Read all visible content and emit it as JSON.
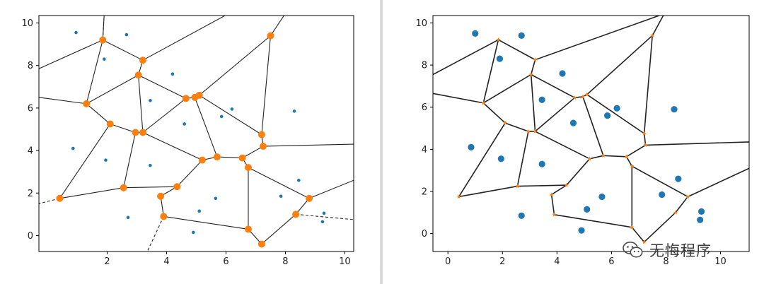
{
  "colors": {
    "point": "#1f77b4",
    "vertex": "#ff7f0e",
    "edge": "#222222",
    "wechat": "#4a4a4a"
  },
  "chart_data": [
    {
      "type": "scatter",
      "title": "",
      "xlabel": "",
      "ylabel": "",
      "xlim": [
        -0.3,
        10.3
      ],
      "ylim": [
        -0.75,
        10.35
      ],
      "xticks": [
        "2",
        "4",
        "6",
        "8",
        "10"
      ],
      "yticks": [
        "0",
        "2",
        "4",
        "6",
        "8",
        "10"
      ],
      "grid": false,
      "points": [
        [
          0.95,
          9.55
        ],
        [
          2.65,
          9.45
        ],
        [
          1.9,
          8.3
        ],
        [
          4.2,
          7.6
        ],
        [
          3.45,
          6.35
        ],
        [
          6.2,
          5.95
        ],
        [
          8.3,
          5.85
        ],
        [
          5.85,
          5.6
        ],
        [
          4.6,
          5.25
        ],
        [
          0.85,
          4.1
        ],
        [
          1.95,
          3.55
        ],
        [
          3.45,
          3.3
        ],
        [
          8.45,
          2.6
        ],
        [
          5.65,
          1.75
        ],
        [
          7.85,
          1.85
        ],
        [
          2.7,
          0.85
        ],
        [
          5.1,
          1.15
        ],
        [
          9.3,
          1.05
        ],
        [
          9.25,
          0.65
        ],
        [
          4.9,
          0.15
        ]
      ],
      "vertices": [
        [
          1.85,
          9.2
        ],
        [
          3.2,
          8.25
        ],
        [
          3.05,
          7.55
        ],
        [
          1.3,
          6.2
        ],
        [
          4.65,
          6.45
        ],
        [
          4.95,
          6.5
        ],
        [
          5.1,
          6.6
        ],
        [
          2.1,
          5.25
        ],
        [
          2.95,
          4.85
        ],
        [
          3.2,
          4.85
        ],
        [
          7.2,
          4.75
        ],
        [
          7.25,
          4.2
        ],
        [
          5.2,
          3.55
        ],
        [
          5.7,
          3.7
        ],
        [
          6.55,
          3.65
        ],
        [
          6.75,
          3.2
        ],
        [
          2.55,
          2.25
        ],
        [
          4.35,
          2.3
        ],
        [
          3.8,
          1.85
        ],
        [
          0.4,
          1.75
        ],
        [
          8.8,
          1.75
        ],
        [
          3.9,
          0.9
        ],
        [
          8.35,
          1.0
        ],
        [
          6.75,
          0.3
        ],
        [
          7.2,
          -0.4
        ],
        [
          7.5,
          9.4
        ]
      ],
      "edges": [
        [
          0,
          1
        ],
        [
          1,
          2
        ],
        [
          2,
          3
        ],
        [
          2,
          4
        ],
        [
          4,
          5
        ],
        [
          5,
          6
        ],
        [
          6,
          25
        ],
        [
          3,
          7
        ],
        [
          7,
          8
        ],
        [
          8,
          9
        ],
        [
          9,
          2
        ],
        [
          9,
          4
        ],
        [
          9,
          12
        ],
        [
          12,
          13
        ],
        [
          13,
          14
        ],
        [
          14,
          15
        ],
        [
          15,
          23
        ],
        [
          6,
          10
        ],
        [
          10,
          25
        ],
        [
          10,
          11
        ],
        [
          11,
          14
        ],
        [
          5,
          13
        ],
        [
          8,
          16
        ],
        [
          7,
          19
        ],
        [
          19,
          16
        ],
        [
          16,
          17
        ],
        [
          17,
          12
        ],
        [
          17,
          18
        ],
        [
          18,
          21
        ],
        [
          21,
          23
        ],
        [
          23,
          24
        ],
        [
          15,
          20
        ],
        [
          20,
          22
        ],
        [
          22,
          24
        ],
        [
          0,
          3
        ]
      ],
      "outer_edges": [
        [
          0,
          [
            1.9,
            10.45
          ]
        ],
        [
          1,
          [
            6.1,
            10.45
          ]
        ],
        [
          3,
          [
            -0.3,
            6.5
          ]
        ],
        [
          0,
          [
            -0.3,
            7.85
          ]
        ],
        [
          25,
          [
            8.0,
            10.45
          ]
        ],
        [
          11,
          [
            10.3,
            4.3
          ]
        ],
        [
          20,
          [
            10.3,
            2.6
          ]
        ]
      ],
      "outer_dashed": [
        [
          0,
          [
            1.9,
            10.45
          ]
        ],
        [
          19,
          [
            -0.3,
            1.5
          ]
        ],
        [
          21,
          [
            3.35,
            -0.75
          ]
        ],
        [
          22,
          [
            10.3,
            0.75
          ]
        ]
      ]
    },
    {
      "type": "scatter",
      "title": "",
      "xlabel": "",
      "ylabel": "",
      "xlim": [
        -0.55,
        11.05
      ],
      "ylim": [
        -0.85,
        10.35
      ],
      "xticks": [
        "0",
        "2",
        "4",
        "6",
        "8",
        "10"
      ],
      "yticks": [
        "0",
        "2",
        "4",
        "6",
        "8",
        "10"
      ],
      "grid": false,
      "points": [
        [
          1.0,
          9.5
        ],
        [
          2.7,
          9.4
        ],
        [
          1.9,
          8.3
        ],
        [
          4.2,
          7.6
        ],
        [
          3.45,
          6.35
        ],
        [
          6.2,
          5.95
        ],
        [
          8.3,
          5.9
        ],
        [
          5.85,
          5.6
        ],
        [
          4.6,
          5.25
        ],
        [
          0.85,
          4.1
        ],
        [
          1.95,
          3.55
        ],
        [
          3.45,
          3.3
        ],
        [
          8.45,
          2.6
        ],
        [
          5.65,
          1.75
        ],
        [
          7.85,
          1.85
        ],
        [
          2.7,
          0.85
        ],
        [
          5.1,
          1.15
        ],
        [
          9.3,
          1.05
        ],
        [
          9.25,
          0.65
        ],
        [
          4.9,
          0.15
        ]
      ],
      "vertices": [
        [
          1.85,
          9.2
        ],
        [
          3.2,
          8.25
        ],
        [
          3.05,
          7.55
        ],
        [
          1.3,
          6.2
        ],
        [
          4.65,
          6.45
        ],
        [
          4.95,
          6.5
        ],
        [
          5.1,
          6.6
        ],
        [
          2.1,
          5.25
        ],
        [
          2.95,
          4.85
        ],
        [
          3.2,
          4.85
        ],
        [
          7.2,
          4.75
        ],
        [
          7.25,
          4.2
        ],
        [
          5.2,
          3.55
        ],
        [
          5.7,
          3.7
        ],
        [
          6.55,
          3.65
        ],
        [
          6.75,
          3.2
        ],
        [
          2.55,
          2.25
        ],
        [
          4.35,
          2.3
        ],
        [
          3.8,
          1.85
        ],
        [
          0.4,
          1.75
        ],
        [
          8.8,
          1.75
        ],
        [
          3.9,
          0.9
        ],
        [
          8.35,
          1.0
        ],
        [
          6.75,
          0.3
        ],
        [
          7.2,
          -0.4
        ],
        [
          7.5,
          9.4
        ]
      ],
      "edges": [
        [
          0,
          1
        ],
        [
          1,
          2
        ],
        [
          2,
          3
        ],
        [
          2,
          4
        ],
        [
          4,
          5
        ],
        [
          5,
          6
        ],
        [
          6,
          25
        ],
        [
          3,
          7
        ],
        [
          7,
          8
        ],
        [
          8,
          9
        ],
        [
          9,
          2
        ],
        [
          9,
          4
        ],
        [
          9,
          12
        ],
        [
          12,
          13
        ],
        [
          13,
          14
        ],
        [
          14,
          15
        ],
        [
          15,
          23
        ],
        [
          6,
          10
        ],
        [
          10,
          25
        ],
        [
          10,
          11
        ],
        [
          11,
          14
        ],
        [
          5,
          13
        ],
        [
          8,
          16
        ],
        [
          7,
          19
        ],
        [
          19,
          16
        ],
        [
          16,
          17
        ],
        [
          17,
          12
        ],
        [
          17,
          18
        ],
        [
          18,
          21
        ],
        [
          21,
          23
        ],
        [
          23,
          24
        ],
        [
          15,
          20
        ],
        [
          20,
          22
        ],
        [
          22,
          24
        ],
        [
          0,
          3
        ]
      ],
      "outer_edges": [
        [
          0,
          [
            -0.55,
            7.55
          ]
        ],
        [
          1,
          [
            7.75,
            10.35
          ]
        ],
        [
          3,
          [
            -0.55,
            6.65
          ]
        ],
        [
          25,
          [
            7.9,
            10.35
          ]
        ],
        [
          11,
          [
            11.05,
            4.35
          ]
        ],
        [
          20,
          [
            11.05,
            3.1
          ]
        ]
      ],
      "outer_dashed": []
    }
  ],
  "watermark": {
    "text": "无悔程序"
  }
}
